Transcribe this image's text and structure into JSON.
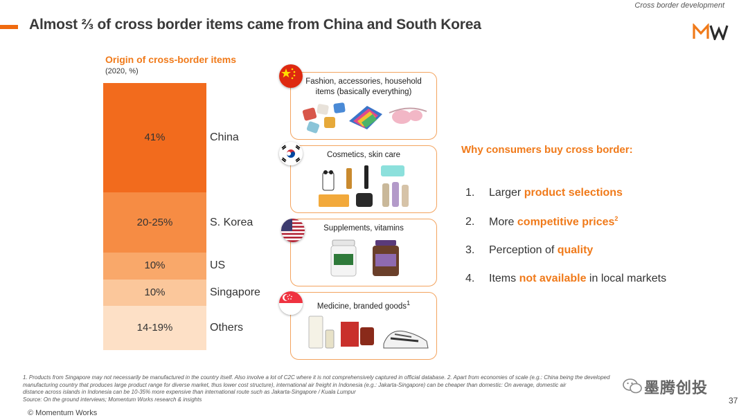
{
  "header": {
    "section": "Cross border development",
    "title": "Almost ⅔ of cross border items came from China and South Korea"
  },
  "colors": {
    "accent": "#f07a1a",
    "card_border": "#f3a35e"
  },
  "chart_data": {
    "type": "bar",
    "stacked": true,
    "title": "Origin of cross-border items",
    "subtitle": "(2020, %)",
    "categories": [
      "China",
      "S. Korea",
      "US",
      "Singapore",
      "Others"
    ],
    "value_labels": [
      "41%",
      "20-25%",
      "10%",
      "10%",
      "14-19%"
    ],
    "values": [
      41,
      22.5,
      10,
      10,
      16.5
    ],
    "colors": [
      "#f26b1d",
      "#f68c44",
      "#f9a86a",
      "#fbc79b",
      "#fde0c6"
    ],
    "ylim": [
      0,
      100
    ],
    "legend": "none"
  },
  "origins": [
    {
      "country": "China",
      "flag_icon": "china-flag-icon",
      "label": "Fashion, accessories, household items (basically everything)"
    },
    {
      "country": "South Korea",
      "flag_icon": "south-korea-flag-icon",
      "label": "Cosmetics, skin care"
    },
    {
      "country": "US",
      "flag_icon": "us-flag-icon",
      "label": "Supplements, vitamins"
    },
    {
      "country": "Singapore",
      "flag_icon": "singapore-flag-icon",
      "label": "Medicine, branded goods",
      "label_sup": "1"
    }
  ],
  "reasons": {
    "title": "Why consumers buy cross border:",
    "items": [
      {
        "num": "1.",
        "pre": "Larger ",
        "hl": "product selections",
        "post": "",
        "sup": ""
      },
      {
        "num": "2.",
        "pre": "More ",
        "hl": "competitive prices",
        "post": "",
        "sup": "2"
      },
      {
        "num": "3.",
        "pre": "Perception of ",
        "hl": "quality",
        "post": "",
        "sup": ""
      },
      {
        "num": "4.",
        "pre": "Items ",
        "hl": "not available",
        "post": " in local markets",
        "sup": ""
      }
    ]
  },
  "footer": {
    "notes_1": "1.  Products from Singapore may not necessarily be manufactured in the country itself. Also involve a lot of C2C where it is not comprehensively captured in official database.     2. Apart from economies of scale (e.g.: China being the developed",
    "notes_2": "manufacturing country that produces large product range for diverse market, thus lower cost structure), international air freight in Indonesia (e.g.: Jakarta-Singapore) can be cheaper than domestic: On average, domestic air",
    "notes_3": "distance across islands in Indonesia can be 10-35% more expensive than international route such as Jakarta-Singapore / Kuala Lumpur",
    "source": "Source: On the ground interviews;  Momentum Works research &  insights",
    "copyright": "© Momentum Works",
    "page": "37",
    "watermark": "墨腾创投"
  }
}
